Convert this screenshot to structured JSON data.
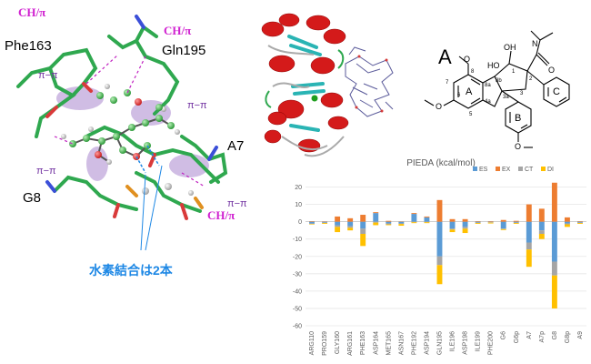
{
  "labels": {
    "chpi_top_left": "CH/π",
    "chpi_top_right": "CH/π",
    "chpi_right": "CH/π",
    "res_phe163": "Phe163",
    "res_gln195": "Gln195",
    "res_a7": "A7",
    "res_g8": "G8",
    "pipi_1": "π−π",
    "pipi_2": "π−π",
    "pipi_3": "π−π",
    "pipi_4": "π−π",
    "hbond_note": "水素結合は2本"
  },
  "molecule": {
    "panel_label": "A",
    "atoms": {
      "N": "N",
      "O_amide": "O",
      "HO_a": "HO",
      "OH": "OH",
      "O_top": "O",
      "O_left": "O",
      "O_bottom": "O",
      "ring_A": "A",
      "ring_B": "B",
      "ring_C": "C",
      "n8": "8",
      "n7": "7",
      "n6": "6",
      "n5": "5",
      "n8a": "8a",
      "n8b": "8b",
      "n4a": "4a",
      "n3a": "3a",
      "n1": "1",
      "n2": "2",
      "n3": "3"
    }
  },
  "chart_data": {
    "type": "bar",
    "stacked": true,
    "title": "PIEDA (kcal/mol)",
    "legend_position": "top-right",
    "ylim": [
      -60,
      25
    ],
    "yticks": [
      -60,
      -50,
      -40,
      -30,
      -20,
      -10,
      0,
      10,
      20
    ],
    "grid": true,
    "categories": [
      "ARG110",
      "PRO159",
      "GLY160",
      "ARG161",
      "PHE163",
      "ASP164",
      "MET165",
      "ASN167",
      "PHE192",
      "ASP194",
      "GLN195",
      "ILE196",
      "ASP198",
      "ILE199",
      "PHE200",
      "G6",
      "G6p",
      "A7",
      "A7p",
      "G8",
      "G8p",
      "A9"
    ],
    "series": [
      {
        "name": "ES",
        "color": "#5b9bd5",
        "values": [
          -1,
          -0.5,
          -2,
          -2.5,
          -4,
          5,
          -1,
          -1,
          4.5,
          2.5,
          -20,
          -4,
          -3,
          -0.5,
          -0.3,
          -4,
          -0.5,
          -12,
          -5,
          -23,
          -1,
          -0.5
        ]
      },
      {
        "name": "EX",
        "color": "#ed7d31",
        "values": [
          0.3,
          0.2,
          3,
          2,
          4,
          0.5,
          0.5,
          0.2,
          0.5,
          0.5,
          12.5,
          1.5,
          1.5,
          0.3,
          0.3,
          1,
          0.5,
          10,
          7.5,
          22.5,
          2.5,
          0.3
        ]
      },
      {
        "name": "CT",
        "color": "#a5a5a5",
        "values": [
          -0.3,
          -0.2,
          -1,
          -1,
          -3,
          -0.5,
          -0.5,
          -0.3,
          -0.3,
          -0.3,
          -5,
          -0.5,
          -1,
          -0.2,
          -0.2,
          -0.3,
          -0.2,
          -4,
          -2,
          -8,
          -0.5,
          -0.2
        ]
      },
      {
        "name": "DI",
        "color": "#ffc000",
        "values": [
          -0.3,
          -0.5,
          -3,
          -1.5,
          -7,
          -1.5,
          -0.5,
          -1,
          -0.5,
          -0.5,
          -11,
          -1.5,
          -2.5,
          -0.5,
          -0.5,
          -0.5,
          -0.5,
          -10,
          -3,
          -19,
          -1.5,
          -0.5
        ]
      }
    ]
  }
}
